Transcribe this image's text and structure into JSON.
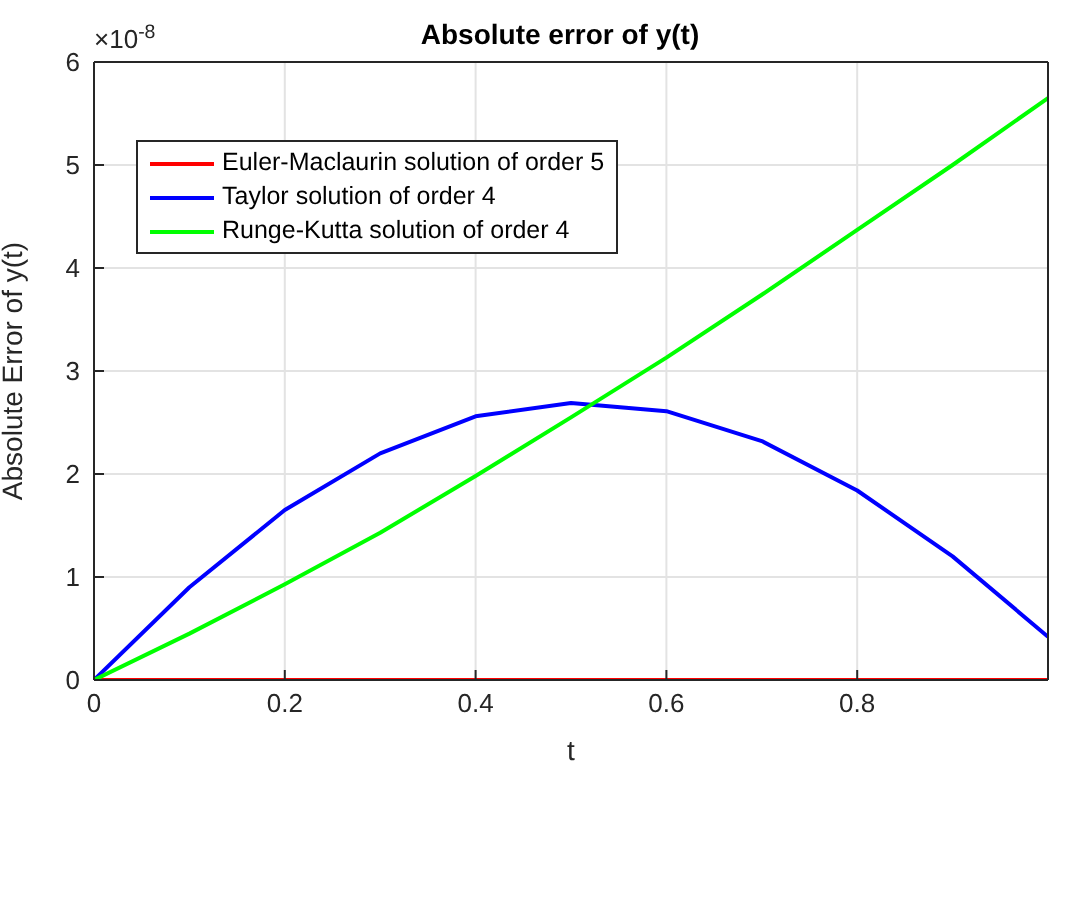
{
  "chart_data": {
    "type": "line",
    "title": "Absolute error of y(t)",
    "xlabel": "t",
    "ylabel": "Absolute Error of y(t)",
    "annotations": [
      "×10$^{-8}$"
    ],
    "x": [
      0,
      0.1,
      0.2,
      0.3,
      0.4,
      0.5,
      0.6,
      0.7,
      0.8,
      0.9,
      1.0
    ],
    "series": [
      {
        "name": "Euler-Maclaurin solution of order 5",
        "color": "#ff0000",
        "values": [
          0,
          0,
          0,
          0,
          0,
          0,
          0,
          0,
          0,
          0,
          0
        ]
      },
      {
        "name": "Taylor solution of order 4",
        "color": "#0000ff",
        "values": [
          0,
          0.9,
          1.65,
          2.2,
          2.56,
          2.69,
          2.61,
          2.32,
          1.84,
          1.2,
          0.42
        ]
      },
      {
        "name": "Runge-Kutta solution of order 4",
        "color": "#00ff00",
        "values": [
          0,
          0.45,
          0.93,
          1.43,
          1.98,
          2.55,
          3.13,
          3.74,
          4.37,
          5.0,
          5.65
        ]
      }
    ],
    "xlim": [
      0,
      1
    ],
    "xticks": [
      0,
      0.2,
      0.4,
      0.6,
      0.8
    ],
    "ylim": [
      0,
      6
    ],
    "yticks": [
      0,
      1,
      2,
      3,
      4,
      5,
      6
    ],
    "grid": true,
    "legend": "top left",
    "marker": "none",
    "line_style": "solid"
  }
}
